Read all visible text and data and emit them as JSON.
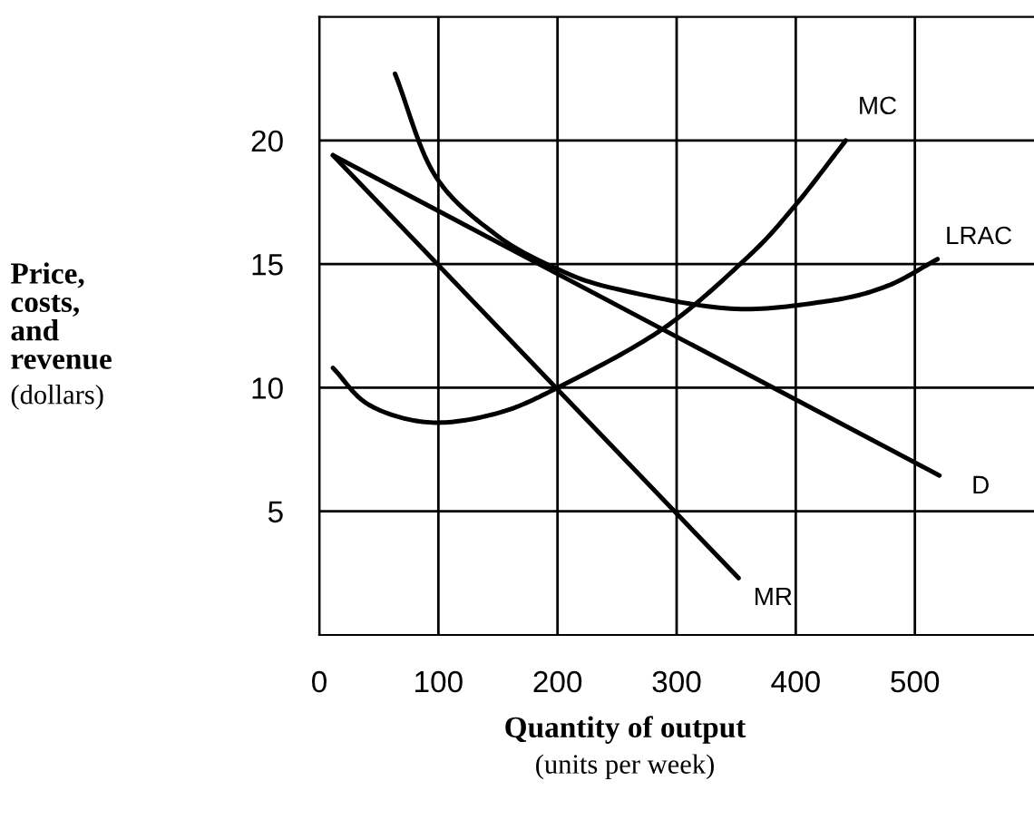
{
  "chart_data": {
    "type": "line",
    "xlabel": "Quantity of output\n(units per week)",
    "ylabel": "Price,\ncosts,\nand\nrevenue\n(dollars)",
    "series": [
      {
        "name": "MC",
        "color": "#000000",
        "x": [
          11.5,
          42,
          92,
          148,
          200,
          289,
          360,
          400,
          442
        ],
        "values": [
          10.8,
          9.3,
          8.6,
          8.95,
          10,
          12.4,
          15.3,
          17.4,
          20.0
        ]
      },
      {
        "name": "LRAC",
        "color": "#000000",
        "x": [
          63.6,
          97,
          148,
          200,
          249,
          345,
          426,
          476,
          519
        ],
        "values": [
          22.7,
          18.6,
          16.2,
          14.8,
          14.0,
          13.2,
          13.5,
          14.1,
          15.2
        ]
      },
      {
        "name": "D",
        "color": "#000000",
        "x": [
          11.5,
          520.6
        ],
        "values": [
          19.4,
          6.45
        ]
      },
      {
        "name": "MR",
        "color": "#000000",
        "x": [
          11.5,
          352
        ],
        "values": [
          19.4,
          2.3
        ]
      }
    ],
    "xlim": [
      0,
      600
    ],
    "ylim": [
      0,
      25
    ],
    "xticks": [
      0,
      100,
      200,
      300,
      400,
      500
    ],
    "yticks": [
      5,
      10,
      15,
      20
    ],
    "grid": true,
    "legend": false,
    "marker": "none",
    "line_style": "solid"
  }
}
